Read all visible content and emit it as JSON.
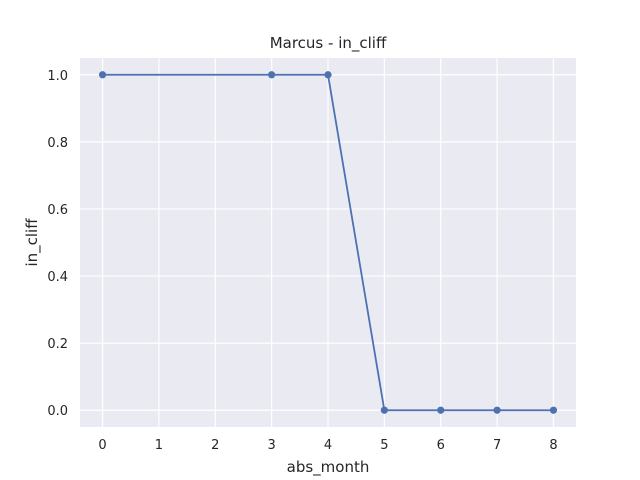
{
  "chart_data": {
    "type": "line",
    "title": "Marcus - in_cliff",
    "xlabel": "abs_month",
    "ylabel": "in_cliff",
    "x": [
      0,
      3,
      4,
      5,
      6,
      7,
      8
    ],
    "series": [
      {
        "values": [
          1.0,
          1.0,
          1.0,
          0.0,
          0.0,
          0.0,
          0.0
        ],
        "color": "#4c72b0",
        "marker": "circle"
      }
    ],
    "xlim": [
      -0.4,
      8.4
    ],
    "ylim": [
      -0.05,
      1.05
    ],
    "xticks": [
      0,
      1,
      2,
      3,
      4,
      5,
      6,
      7,
      8
    ],
    "xtick_labels": [
      "0",
      "1",
      "2",
      "3",
      "4",
      "5",
      "6",
      "7",
      "8"
    ],
    "yticks": [
      0.0,
      0.2,
      0.4,
      0.6,
      0.8,
      1.0
    ],
    "ytick_labels": [
      "0.0",
      "0.2",
      "0.4",
      "0.6",
      "0.8",
      "1.0"
    ],
    "grid": true,
    "background_color": "#eaeaf2"
  }
}
